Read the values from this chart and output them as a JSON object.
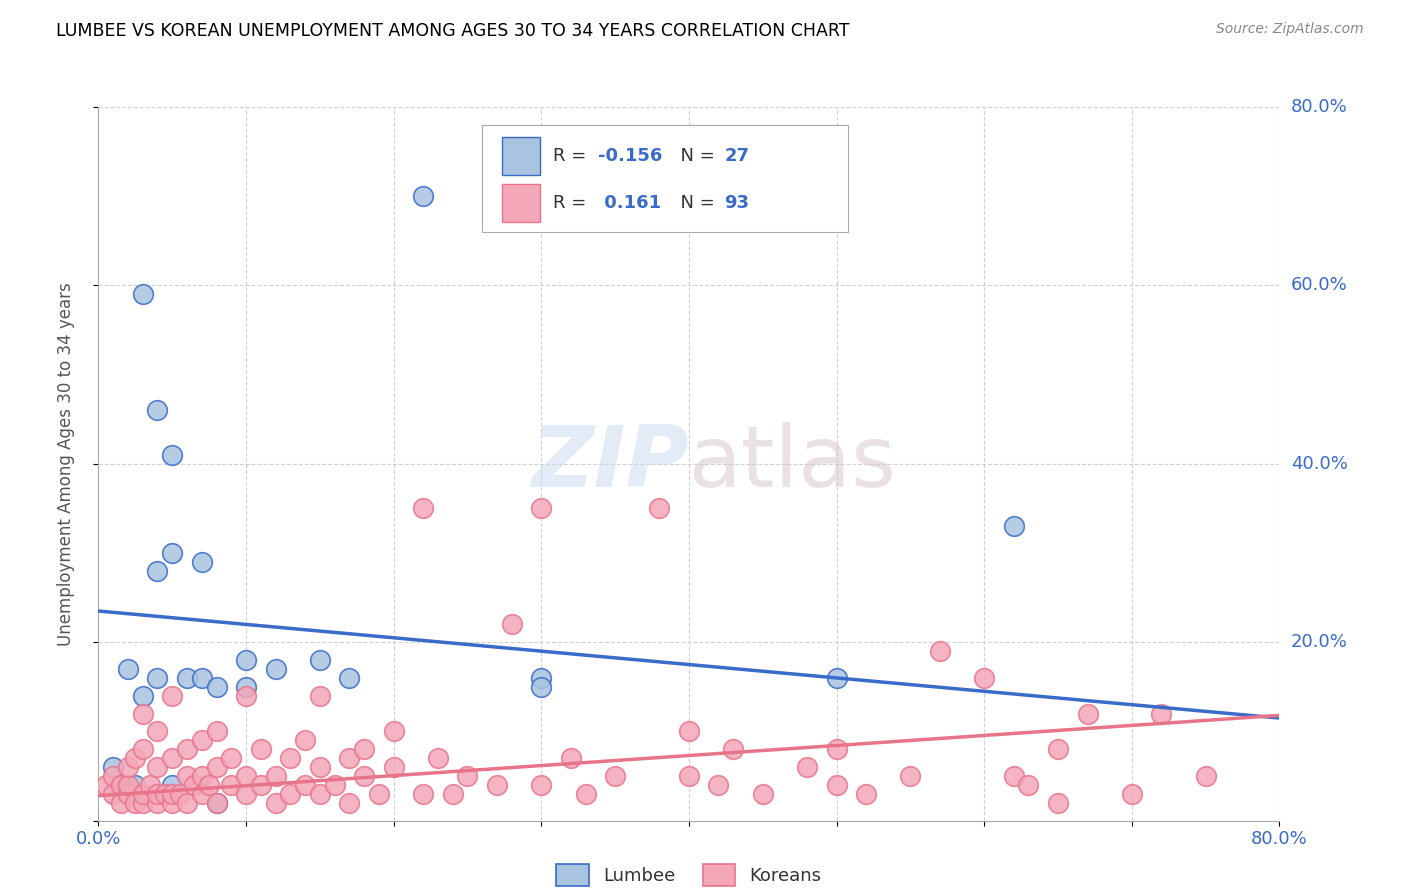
{
  "title": "LUMBEE VS KOREAN UNEMPLOYMENT AMONG AGES 30 TO 34 YEARS CORRELATION CHART",
  "source": "Source: ZipAtlas.com",
  "ylabel": "Unemployment Among Ages 30 to 34 years",
  "xlim": [
    0.0,
    0.8
  ],
  "ylim": [
    0.0,
    0.8
  ],
  "watermark": "ZIPatlas",
  "legend_R_lumbee": "-0.156",
  "legend_N_lumbee": "27",
  "legend_R_korean": "0.161",
  "legend_N_korean": "93",
  "lumbee_color": "#a8c4e0",
  "korean_color": "#f4a7b9",
  "lumbee_line_color": "#3a6bc9",
  "korean_line_color": "#e8748a",
  "text_color_blue": "#3a6bc9",
  "text_color_dark": "#333333",
  "lumbee_scatter": [
    [
      0.01,
      0.06
    ],
    [
      0.015,
      0.04
    ],
    [
      0.02,
      0.17
    ],
    [
      0.025,
      0.04
    ],
    [
      0.03,
      0.59
    ],
    [
      0.03,
      0.14
    ],
    [
      0.04,
      0.28
    ],
    [
      0.04,
      0.46
    ],
    [
      0.04,
      0.16
    ],
    [
      0.05,
      0.41
    ],
    [
      0.05,
      0.3
    ],
    [
      0.05,
      0.04
    ],
    [
      0.06,
      0.16
    ],
    [
      0.07,
      0.29
    ],
    [
      0.07,
      0.16
    ],
    [
      0.08,
      0.15
    ],
    [
      0.08,
      0.02
    ],
    [
      0.1,
      0.18
    ],
    [
      0.1,
      0.15
    ],
    [
      0.12,
      0.17
    ],
    [
      0.15,
      0.18
    ],
    [
      0.17,
      0.16
    ],
    [
      0.22,
      0.7
    ],
    [
      0.3,
      0.16
    ],
    [
      0.3,
      0.15
    ],
    [
      0.5,
      0.16
    ],
    [
      0.62,
      0.33
    ]
  ],
  "korean_scatter": [
    [
      0.005,
      0.04
    ],
    [
      0.01,
      0.03
    ],
    [
      0.01,
      0.05
    ],
    [
      0.015,
      0.02
    ],
    [
      0.015,
      0.04
    ],
    [
      0.02,
      0.03
    ],
    [
      0.02,
      0.04
    ],
    [
      0.02,
      0.06
    ],
    [
      0.025,
      0.02
    ],
    [
      0.025,
      0.07
    ],
    [
      0.03,
      0.02
    ],
    [
      0.03,
      0.03
    ],
    [
      0.03,
      0.08
    ],
    [
      0.03,
      0.12
    ],
    [
      0.035,
      0.04
    ],
    [
      0.04,
      0.02
    ],
    [
      0.04,
      0.03
    ],
    [
      0.04,
      0.06
    ],
    [
      0.04,
      0.1
    ],
    [
      0.045,
      0.03
    ],
    [
      0.05,
      0.02
    ],
    [
      0.05,
      0.03
    ],
    [
      0.05,
      0.07
    ],
    [
      0.05,
      0.14
    ],
    [
      0.055,
      0.03
    ],
    [
      0.06,
      0.02
    ],
    [
      0.06,
      0.05
    ],
    [
      0.06,
      0.08
    ],
    [
      0.065,
      0.04
    ],
    [
      0.07,
      0.03
    ],
    [
      0.07,
      0.05
    ],
    [
      0.07,
      0.09
    ],
    [
      0.075,
      0.04
    ],
    [
      0.08,
      0.02
    ],
    [
      0.08,
      0.06
    ],
    [
      0.08,
      0.1
    ],
    [
      0.09,
      0.04
    ],
    [
      0.09,
      0.07
    ],
    [
      0.1,
      0.03
    ],
    [
      0.1,
      0.05
    ],
    [
      0.1,
      0.14
    ],
    [
      0.11,
      0.04
    ],
    [
      0.11,
      0.08
    ],
    [
      0.12,
      0.02
    ],
    [
      0.12,
      0.05
    ],
    [
      0.13,
      0.03
    ],
    [
      0.13,
      0.07
    ],
    [
      0.14,
      0.04
    ],
    [
      0.14,
      0.09
    ],
    [
      0.15,
      0.03
    ],
    [
      0.15,
      0.06
    ],
    [
      0.15,
      0.14
    ],
    [
      0.16,
      0.04
    ],
    [
      0.17,
      0.02
    ],
    [
      0.17,
      0.07
    ],
    [
      0.18,
      0.05
    ],
    [
      0.18,
      0.08
    ],
    [
      0.19,
      0.03
    ],
    [
      0.2,
      0.06
    ],
    [
      0.2,
      0.1
    ],
    [
      0.22,
      0.03
    ],
    [
      0.22,
      0.35
    ],
    [
      0.23,
      0.07
    ],
    [
      0.24,
      0.03
    ],
    [
      0.25,
      0.05
    ],
    [
      0.27,
      0.04
    ],
    [
      0.28,
      0.22
    ],
    [
      0.3,
      0.04
    ],
    [
      0.3,
      0.35
    ],
    [
      0.32,
      0.07
    ],
    [
      0.33,
      0.03
    ],
    [
      0.35,
      0.05
    ],
    [
      0.38,
      0.35
    ],
    [
      0.4,
      0.05
    ],
    [
      0.4,
      0.1
    ],
    [
      0.42,
      0.04
    ],
    [
      0.43,
      0.08
    ],
    [
      0.45,
      0.03
    ],
    [
      0.48,
      0.06
    ],
    [
      0.5,
      0.04
    ],
    [
      0.5,
      0.08
    ],
    [
      0.52,
      0.03
    ],
    [
      0.55,
      0.05
    ],
    [
      0.57,
      0.19
    ],
    [
      0.6,
      0.16
    ],
    [
      0.62,
      0.05
    ],
    [
      0.63,
      0.04
    ],
    [
      0.65,
      0.02
    ],
    [
      0.65,
      0.08
    ],
    [
      0.67,
      0.12
    ],
    [
      0.7,
      0.03
    ],
    [
      0.72,
      0.12
    ],
    [
      0.75,
      0.05
    ]
  ],
  "lumbee_trendline_x": [
    0.0,
    0.8
  ],
  "lumbee_trendline_y": [
    0.235,
    0.115
  ],
  "korean_trendline_x": [
    0.0,
    0.8
  ],
  "korean_trendline_y": [
    0.028,
    0.118
  ]
}
